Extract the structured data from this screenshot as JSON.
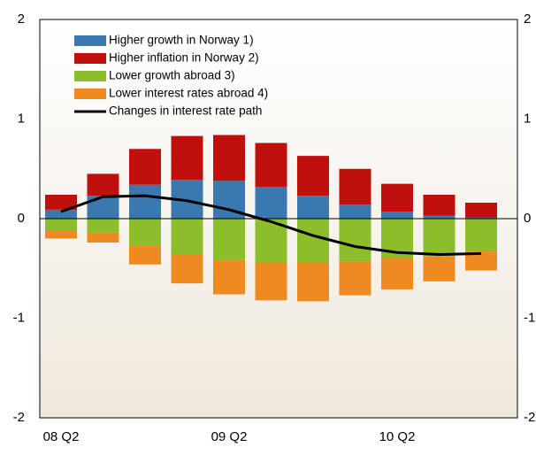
{
  "chart_data": {
    "type": "bar",
    "categories": [
      "08 Q2",
      null,
      null,
      null,
      "09 Q2",
      null,
      null,
      null,
      "10 Q2",
      null,
      null
    ],
    "series": [
      {
        "name": "Higher growth in Norway 1)",
        "color": "#3a78b0",
        "values": [
          0.09,
          0.23,
          0.34,
          0.39,
          0.38,
          0.32,
          0.23,
          0.14,
          0.07,
          0.03,
          0.01
        ]
      },
      {
        "name": "Higher inflation in Norway 2)",
        "color": "#c0100e",
        "values": [
          0.15,
          0.22,
          0.36,
          0.44,
          0.46,
          0.44,
          0.4,
          0.36,
          0.28,
          0.21,
          0.15
        ]
      },
      {
        "name": "Lower growth abroad 3)",
        "color": "#8cbd2a",
        "values": [
          -0.12,
          -0.14,
          -0.27,
          -0.36,
          -0.41,
          -0.44,
          -0.44,
          -0.43,
          -0.4,
          -0.38,
          -0.33
        ]
      },
      {
        "name": "Lower interest rates abroad 4)",
        "color": "#ee8a22",
        "values": [
          -0.08,
          -0.1,
          -0.19,
          -0.29,
          -0.35,
          -0.38,
          -0.39,
          -0.34,
          -0.31,
          -0.25,
          -0.19
        ]
      },
      {
        "name": "Changes in interest rate path",
        "color": "#000000",
        "type": "line",
        "values": [
          0.07,
          0.22,
          0.23,
          0.18,
          0.09,
          -0.03,
          -0.17,
          -0.28,
          -0.34,
          -0.36,
          -0.35
        ]
      }
    ],
    "ylim": [
      -2,
      2
    ],
    "yticks": [
      -2,
      -1,
      0,
      1,
      2
    ],
    "legend": "upper left"
  }
}
